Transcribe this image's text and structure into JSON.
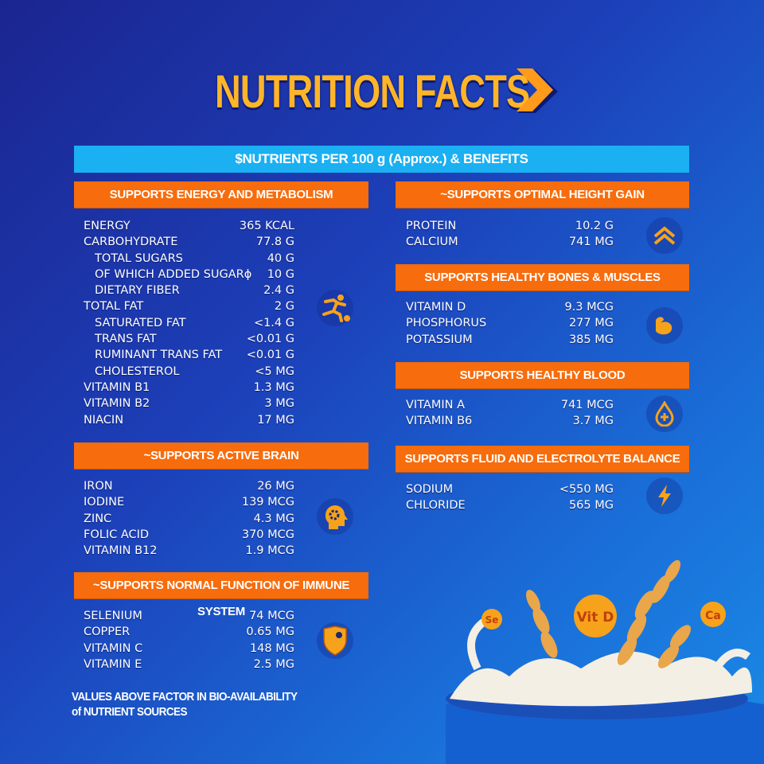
{
  "title": "NUTRITION FACTS",
  "subtitle": "$NUTRIENTS PER 100 g (Approx.) & BENEFITS",
  "colors": {
    "accent": "#f76c0c",
    "bar": "#1ab0f2",
    "title": "#ffb52a"
  },
  "sections": {
    "energy": {
      "header": "SUPPORTS ENERGY AND METABOLISM",
      "icon": "running-player-icon",
      "rows": [
        [
          "ENERGY",
          "365 KCAL"
        ],
        [
          "CARBOHYDRATE",
          "77.8 G"
        ],
        [
          "TOTAL SUGARS",
          "40 G"
        ],
        [
          "OF WHICH ADDED SUGARɸ",
          "10 G"
        ],
        [
          "DIETARY FIBER",
          "2.4 G"
        ],
        [
          "TOTAL FAT",
          "2 G"
        ],
        [
          "SATURATED FAT",
          "<1.4 G"
        ],
        [
          "TRANS FAT",
          "<0.01 G"
        ],
        [
          "RUMINANT TRANS FAT",
          "<0.01 G"
        ],
        [
          "CHOLESTEROL",
          "<5 MG"
        ],
        [
          "VITAMIN B1",
          "1.3 MG"
        ],
        [
          "VITAMIN B2",
          "3 MG"
        ],
        [
          "NIACIN",
          "17 MG"
        ]
      ]
    },
    "brain": {
      "header": "~SUPPORTS ACTIVE BRAIN",
      "icon": "brain-gear-icon",
      "rows": [
        [
          "IRON",
          "26 MG"
        ],
        [
          "IODINE",
          "139 MCG"
        ],
        [
          "ZINC",
          "4.3 MG"
        ],
        [
          "FOLIC ACID",
          "370 MCG"
        ],
        [
          "VITAMIN B12",
          "1.9 MCG"
        ]
      ]
    },
    "immune": {
      "header": "~SUPPORTS NORMAL FUNCTION OF IMMUNE SYSTEM",
      "icon": "shield-virus-icon",
      "rows": [
        [
          "SELENIUM",
          "74 MCG"
        ],
        [
          "COPPER",
          "0.65 MG"
        ],
        [
          "VITAMIN C",
          "148 MG"
        ],
        [
          "VITAMIN E",
          "2.5 MG"
        ]
      ]
    },
    "height": {
      "header": "~SUPPORTS OPTIMAL HEIGHT GAIN",
      "icon": "double-chevron-up-icon",
      "rows": [
        [
          "PROTEIN",
          "10.2 G"
        ],
        [
          "CALCIUM",
          "741 MG"
        ]
      ]
    },
    "bones": {
      "header": "SUPPORTS HEALTHY BONES & MUSCLES",
      "icon": "flexed-arm-icon",
      "rows": [
        [
          "VITAMIN D",
          "9.3 MCG"
        ],
        [
          "PHOSPHORUS",
          "277 MG"
        ],
        [
          "POTASSIUM",
          "385 MG"
        ]
      ]
    },
    "blood": {
      "header": "SUPPORTS HEALTHY BLOOD",
      "icon": "blood-drop-plus-icon",
      "rows": [
        [
          "VITAMIN A",
          "741 MCG"
        ],
        [
          "VITAMIN B6",
          "3.7 MG"
        ]
      ]
    },
    "fluid": {
      "header": "SUPPORTS FLUID AND ELECTROLYTE BALANCE",
      "icon": "lightning-icon",
      "rows": [
        [
          "SODIUM",
          "<550 MG"
        ],
        [
          "CHLORIDE",
          "565 MG"
        ]
      ]
    }
  },
  "footnote": [
    "VALUES ABOVE FACTOR IN BIO-AVAILABILITY",
    "of NUTRIENT SOURCES"
  ],
  "badges": [
    "Se",
    "Vit D",
    "Ca"
  ]
}
